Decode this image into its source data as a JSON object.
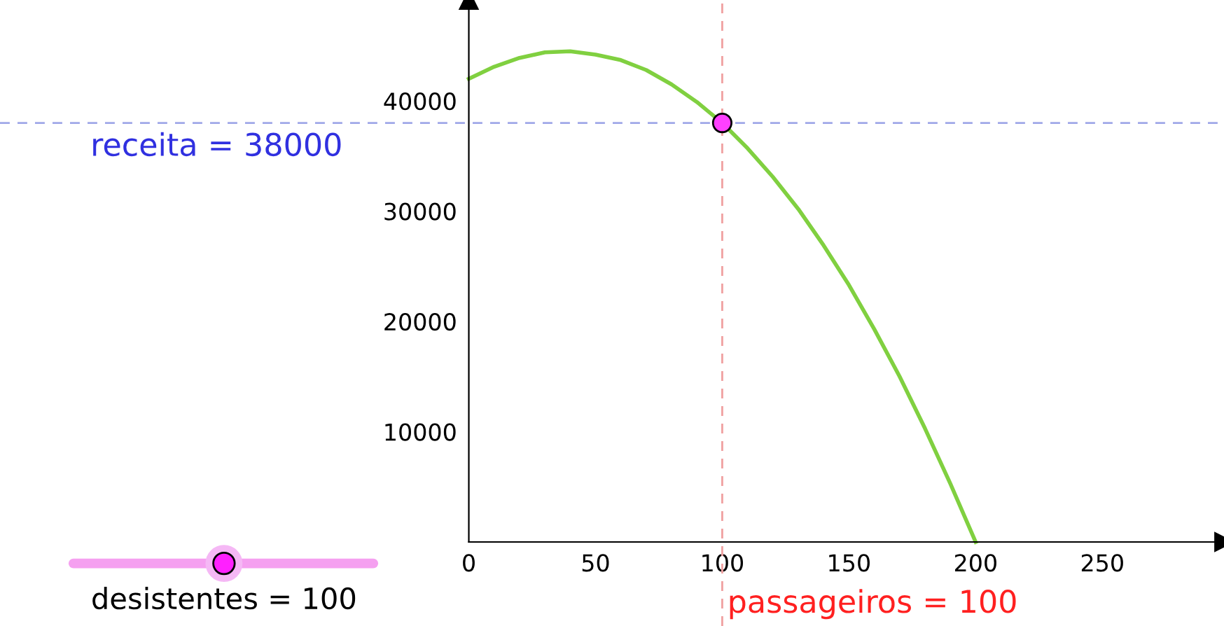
{
  "chart_data": {
    "type": "line",
    "series": [
      {
        "color": "#80d040",
        "x": [
          0,
          10,
          20,
          30,
          40,
          50,
          60,
          70,
          80,
          90,
          100,
          110,
          120,
          130,
          140,
          150,
          160,
          170,
          180,
          190,
          200
        ],
        "values": [
          42000,
          43100,
          43900,
          44400,
          44500,
          44200,
          43700,
          42800,
          41500,
          39900,
          38000,
          35700,
          33100,
          30200,
          26900,
          23300,
          19300,
          15000,
          10300,
          5300,
          0
        ]
      },
      {
        "type": "scatter",
        "color": "#ff40ff",
        "x": [
          100
        ],
        "values": [
          38000
        ],
        "marker": "circle"
      }
    ],
    "xlim": [
      -185,
      298
    ],
    "ylim": [
      -7620,
      49150
    ],
    "xticks": [
      0,
      50,
      100,
      150,
      200,
      250
    ],
    "yticks": [
      10000,
      20000,
      30000,
      40000
    ],
    "ref_lines": [
      {
        "axis": "y",
        "value": 38000,
        "label": "receita = 38000",
        "color": "#a0a8e8",
        "line_style": "dashed"
      },
      {
        "axis": "x",
        "value": 100,
        "label": "passageiros = 100",
        "color": "#f0a0a0",
        "line_style": "dashed"
      }
    ],
    "annotations": [
      "desistentes = 100"
    ],
    "grid": false,
    "legend": false
  }
}
